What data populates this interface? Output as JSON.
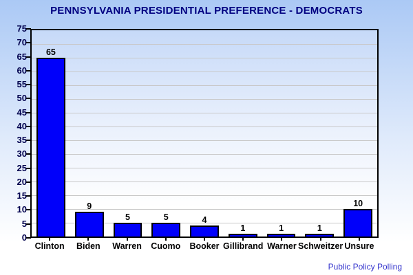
{
  "title": "PENNSYLVANIA PRESIDENTIAL PREFERENCE - DEMOCRATS",
  "attribution": "Public Policy Polling",
  "colors": {
    "page_top": "#abc9f5",
    "page_bottom": "#ffffff",
    "plot_top": "#c6d9f8",
    "plot_bottom": "#ffffff",
    "title": "#000080",
    "tick_label": "#00004d",
    "gridline": "#c8c8c8",
    "bar_fill": "#0000fa",
    "bar_border": "#000000",
    "category_label": "#000000",
    "attribution": "#3333cc",
    "plot_border": "#000000"
  },
  "chart_data": {
    "type": "bar",
    "title": "PENNSYLVANIA PRESIDENTIAL PREFERENCE - DEMOCRATS",
    "categories": [
      "Clinton",
      "Biden",
      "Warren",
      "Cuomo",
      "Booker",
      "Gillibrand",
      "Warner",
      "Schweitzer",
      "Unsure"
    ],
    "values": [
      65,
      9,
      5,
      5,
      4,
      1,
      1,
      1,
      10
    ],
    "xlabel": "",
    "ylabel": "",
    "ylim": [
      0,
      75
    ],
    "ytick_step": 5,
    "grid": true,
    "value_labels": true,
    "legend": "none",
    "attribution": "Public Policy Polling"
  }
}
